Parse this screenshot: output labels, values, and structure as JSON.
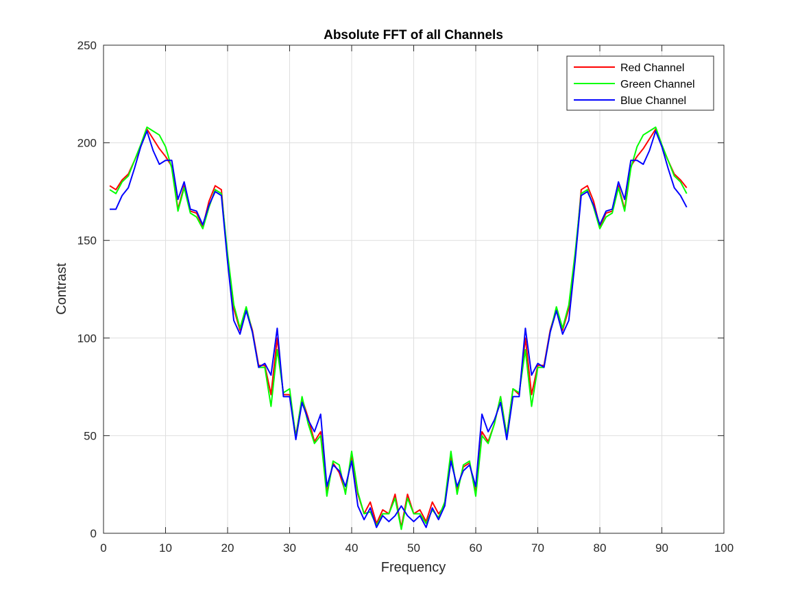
{
  "chart_data": {
    "type": "line",
    "title": "Absolute FFT of all Channels",
    "xlabel": "Frequency",
    "ylabel": "Contrast",
    "xlim": [
      0,
      100
    ],
    "ylim": [
      0,
      250
    ],
    "xticks": [
      0,
      10,
      20,
      30,
      40,
      50,
      60,
      70,
      80,
      90,
      100
    ],
    "yticks": [
      0,
      50,
      100,
      150,
      200,
      250
    ],
    "grid": true,
    "legend_position": "top-right",
    "x": [
      1,
      2,
      3,
      4,
      5,
      6,
      7,
      8,
      9,
      10,
      11,
      12,
      13,
      14,
      15,
      16,
      17,
      18,
      19,
      20,
      21,
      22,
      23,
      24,
      25,
      26,
      27,
      28,
      29,
      30,
      31,
      32,
      33,
      34,
      35,
      36,
      37,
      38,
      39,
      40,
      41,
      42,
      43,
      44,
      45,
      46,
      47,
      48,
      49,
      50,
      51,
      52,
      53,
      54,
      55,
      56,
      57,
      58,
      59,
      60,
      61,
      62,
      63,
      64,
      65,
      66,
      67,
      68,
      69,
      70,
      71,
      72,
      73,
      74,
      75,
      76,
      77,
      78,
      79,
      80,
      81,
      82,
      83,
      84,
      85,
      86,
      87,
      88,
      89,
      90,
      91,
      92,
      93,
      94
    ],
    "series": [
      {
        "name": "Red Channel",
        "color": "#ff0000",
        "values": [
          178,
          176,
          181,
          184,
          191,
          198,
          207,
          202,
          197,
          193,
          188,
          166,
          178,
          165,
          164,
          157,
          170,
          178,
          176,
          140,
          115,
          104,
          115,
          104,
          86,
          86,
          71,
          100,
          71,
          71,
          50,
          69,
          59,
          47,
          52,
          21,
          36,
          31,
          21,
          40,
          20,
          10,
          16,
          5,
          12,
          10,
          20,
          3,
          20,
          10,
          12,
          6,
          16,
          10,
          14,
          40,
          22,
          34,
          36,
          21,
          52,
          47,
          56,
          70,
          50,
          74,
          71,
          100,
          71,
          86,
          86,
          104,
          115,
          104,
          115,
          140,
          176,
          178,
          170,
          157,
          164,
          165,
          178,
          166,
          188,
          193,
          197,
          202,
          207,
          198,
          191,
          184,
          181,
          177
        ],
        "marker": "none"
      },
      {
        "name": "Green Channel",
        "color": "#00ff00",
        "values": [
          176,
          174,
          180,
          183,
          191,
          199,
          208,
          206,
          204,
          198,
          187,
          165,
          177,
          164,
          162,
          156,
          167,
          176,
          174,
          143,
          117,
          105,
          116,
          103,
          85,
          85,
          65,
          94,
          72,
          74,
          49,
          70,
          56,
          46,
          50,
          19,
          37,
          35,
          20,
          42,
          21,
          10,
          11,
          4,
          10,
          10,
          18,
          2,
          18,
          10,
          10,
          5,
          12,
          8,
          16,
          42,
          20,
          35,
          37,
          19,
          50,
          46,
          56,
          70,
          50,
          74,
          72,
          94,
          65,
          85,
          85,
          103,
          116,
          105,
          117,
          143,
          174,
          176,
          167,
          156,
          162,
          164,
          177,
          165,
          187,
          198,
          204,
          206,
          208,
          199,
          191,
          183,
          180,
          174
        ],
        "marker": "none"
      },
      {
        "name": "Blue Channel",
        "color": "#0000ff",
        "values": [
          166,
          166,
          173,
          177,
          187,
          198,
          206,
          196,
          189,
          191,
          191,
          171,
          180,
          166,
          165,
          158,
          168,
          175,
          173,
          139,
          109,
          102,
          114,
          103,
          85,
          87,
          81,
          105,
          70,
          70,
          48,
          67,
          58,
          52,
          61,
          24,
          35,
          32,
          24,
          37,
          14,
          7,
          13,
          3,
          9,
          6,
          9,
          14,
          9,
          6,
          9,
          3,
          13,
          7,
          14,
          37,
          24,
          32,
          35,
          24,
          61,
          52,
          58,
          67,
          48,
          70,
          70,
          105,
          81,
          87,
          85,
          103,
          114,
          102,
          109,
          139,
          173,
          175,
          168,
          158,
          165,
          166,
          180,
          171,
          191,
          191,
          189,
          196,
          206,
          198,
          187,
          177,
          173,
          167
        ],
        "marker": "none"
      }
    ]
  }
}
